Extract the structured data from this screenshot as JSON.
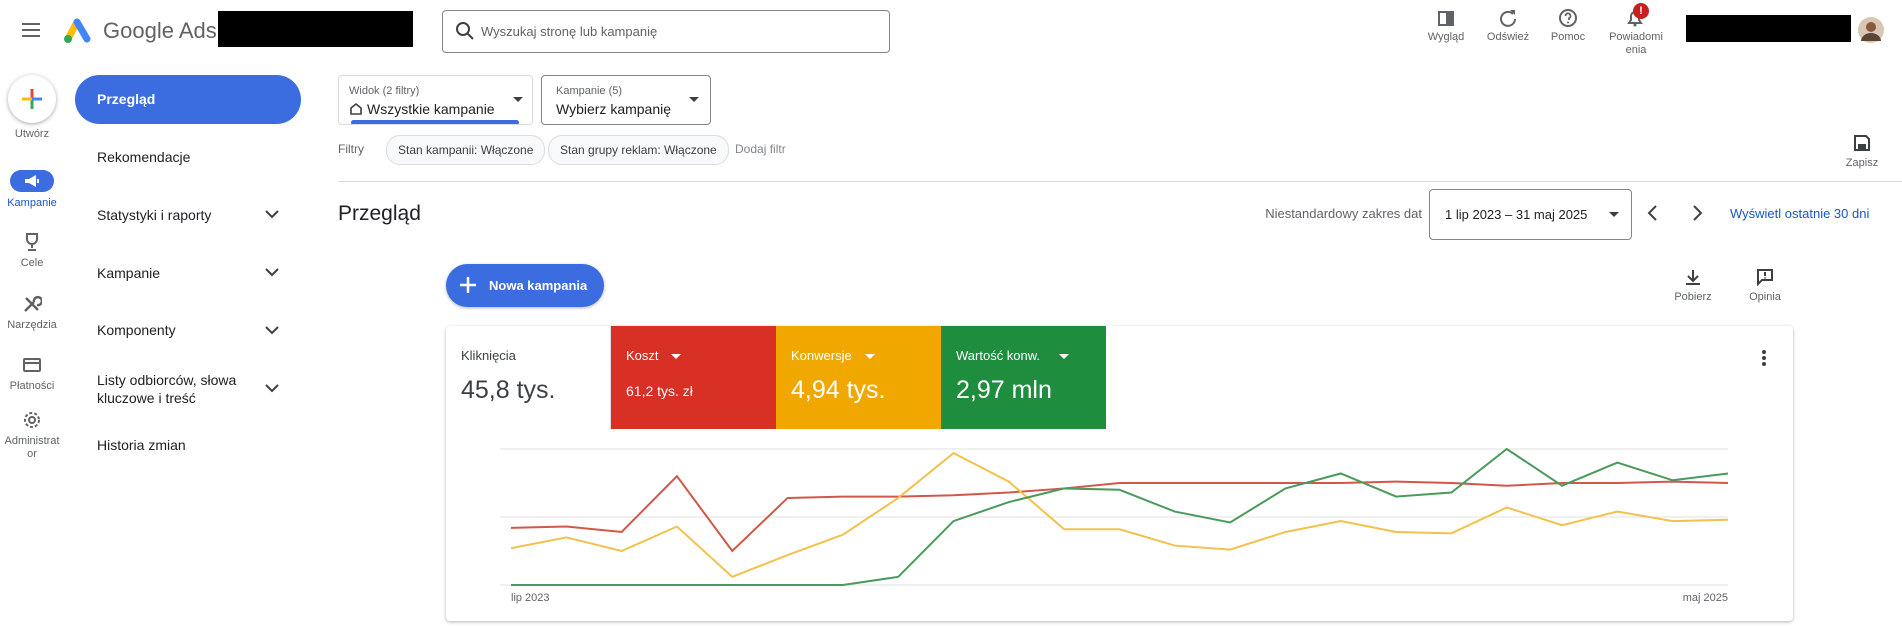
{
  "header": {
    "product": "Google Ads",
    "search_placeholder": "Wyszukaj stronę lub kampanię",
    "actions": [
      "Wygląd",
      "Odśwież",
      "Pomoc",
      "Powiadomienia"
    ],
    "notification_badge": "!"
  },
  "rail": {
    "create": "Utwórz",
    "items": [
      "Kampanie",
      "Cele",
      "Narzędzia",
      "Płatności",
      "Administrator"
    ]
  },
  "nav": {
    "active": "Przegląd",
    "items": [
      "Rekomendacje",
      "Statystyki i raporty",
      "Kampanie",
      "Komponenty",
      "Listy odbiorców, słowa kluczowe i treść",
      "Historia zmian"
    ]
  },
  "selectors": [
    {
      "label": "Widok (2 filtry)",
      "value": "Wszystkie kampanie"
    },
    {
      "label": "Kampanie (5)",
      "value": "Wybierz kampanię"
    }
  ],
  "filters": {
    "label": "Filtry",
    "chips": [
      "Stan kampanii: Włączone",
      "Stan grupy reklam: Włączone"
    ],
    "add": "Dodaj filtr",
    "save": "Zapisz"
  },
  "overview": {
    "title": "Przegląd",
    "date_range_label": "Niestandardowy zakres dat",
    "date_range": "1 lip 2023 – 31 maj 2025",
    "last_30": "Wyświetl ostatnie 30 dni",
    "new_campaign": "Nowa kampania",
    "download": "Pobierz",
    "feedback": "Opinia"
  },
  "metrics": [
    {
      "label": "Kliknięcia",
      "value": "45,8 tys.",
      "color": "#ffffff"
    },
    {
      "label": "Koszt",
      "value": "61,2 tys. zł",
      "color": "#d93025"
    },
    {
      "label": "Konwersje",
      "value": "4,94 tys.",
      "color": "#f0a800"
    },
    {
      "label": "Wartość konw.",
      "value": "2,97 mln",
      "color": "#1e8e3e"
    }
  ],
  "chart": {
    "type": "line",
    "x_labels": [
      "lip 2023",
      "maj 2025"
    ],
    "ylim": [
      0,
      100
    ],
    "series": [
      {
        "color": "#d2574a",
        "values": [
          42,
          43,
          39,
          80,
          25,
          64,
          65,
          65,
          66,
          68,
          71,
          75,
          75,
          75,
          75,
          75,
          76,
          75,
          73,
          75,
          75,
          76,
          75
        ]
      },
      {
        "color": "#f2c14e",
        "values": [
          27,
          35,
          25,
          43,
          6,
          22,
          37,
          64,
          97,
          76,
          41,
          41,
          29,
          26,
          39,
          47,
          39,
          38,
          57,
          44,
          54,
          47,
          48
        ]
      },
      {
        "color": "#4a9a5c",
        "values": [
          0,
          0,
          0,
          0,
          0,
          0,
          0,
          6,
          47,
          61,
          71,
          70,
          54,
          46,
          71,
          82,
          65,
          68,
          100,
          73,
          90,
          77,
          82
        ]
      }
    ]
  }
}
